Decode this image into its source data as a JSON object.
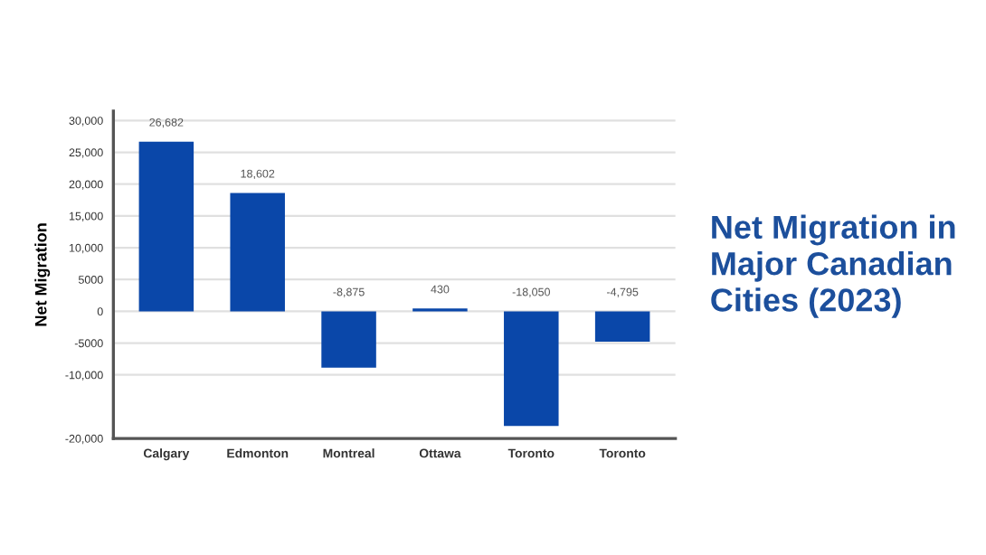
{
  "chart_data": {
    "type": "bar",
    "title": "Net Migration in Major Canadian Cities (2023)",
    "ylabel": "Net Migration",
    "categories": [
      "Calgary",
      "Edmonton",
      "Montreal",
      "Ottawa",
      "Toronto",
      "Toronto"
    ],
    "values": [
      26682,
      18602,
      -8875,
      430,
      -18050,
      -4795
    ],
    "value_labels": [
      "26,682",
      "18,602",
      "-8,875",
      "430",
      "-18,050",
      "-4,795"
    ],
    "color": "#0a47a9",
    "ylim": [
      -20000,
      31500
    ],
    "yticks": [
      {
        "value": -20000,
        "label": "-20,000"
      },
      {
        "value": -10000,
        "label": "-10,000"
      },
      -5000,
      0,
      5000,
      {
        "value": 10000,
        "label": "10,000"
      },
      {
        "value": 15000,
        "label": "15,000"
      },
      {
        "value": 20000,
        "label": "20,000"
      },
      {
        "value": 25000,
        "label": "25,000"
      },
      {
        "value": 30000,
        "label": "30,000"
      }
    ],
    "grid": "y"
  }
}
